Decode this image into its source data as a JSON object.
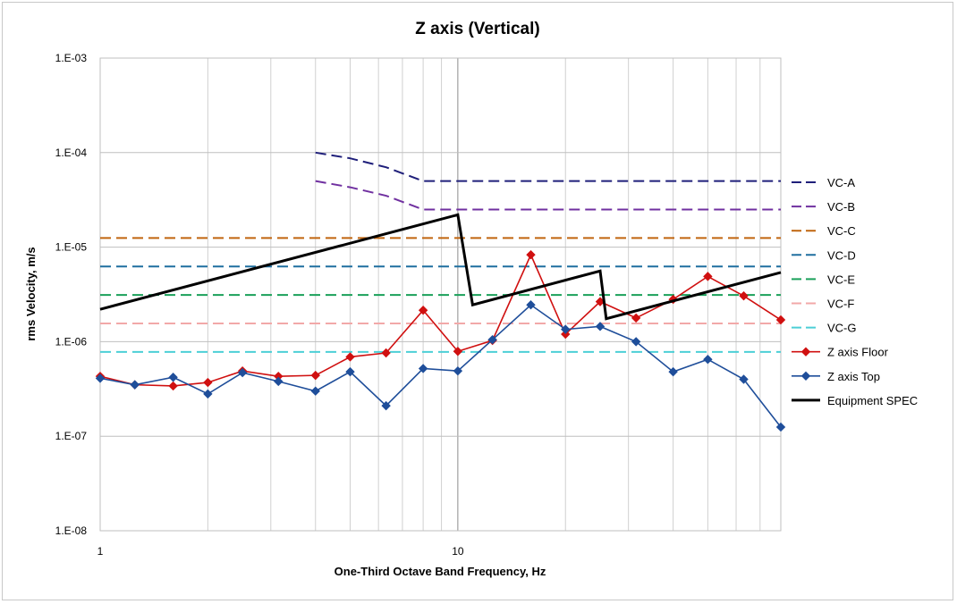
{
  "chart_data": {
    "type": "line",
    "title": "Z axis (Vertical)",
    "xlabel": "One-Third Octave Band Frequency, Hz",
    "ylabel": "rms Velocity, m/s",
    "x_scale": "log",
    "y_scale": "log",
    "xlim": [
      1,
      80
    ],
    "ylim": [
      1e-08,
      0.001
    ],
    "x_tick_labels": [
      {
        "value": 1,
        "label": "1"
      },
      {
        "value": 10,
        "label": "10"
      }
    ],
    "y_tick_labels": [
      {
        "value": 0.001,
        "label": "1.E-03"
      },
      {
        "value": 0.0001,
        "label": "1.E-04"
      },
      {
        "value": 1e-05,
        "label": "1.E-05"
      },
      {
        "value": 1e-06,
        "label": "1.E-06"
      },
      {
        "value": 1e-07,
        "label": "1.E-07"
      },
      {
        "value": 1e-08,
        "label": "1.E-08"
      }
    ],
    "grid": true,
    "legend_position": "right",
    "series": [
      {
        "name": "VC-A",
        "style": "dashed",
        "color": "#1f1f7a",
        "x": [
          4,
          5,
          6.3,
          8,
          10,
          80
        ],
        "values": [
          0.0001,
          8.7e-05,
          7e-05,
          5e-05,
          5e-05,
          5e-05
        ]
      },
      {
        "name": "VC-B",
        "style": "dashed",
        "color": "#7030a0",
        "x": [
          4,
          5,
          6.3,
          8,
          10,
          80
        ],
        "values": [
          5e-05,
          4.3e-05,
          3.5e-05,
          2.5e-05,
          2.5e-05,
          2.5e-05
        ]
      },
      {
        "name": "VC-C",
        "style": "dashed",
        "color": "#c0650f",
        "x": [
          1,
          80
        ],
        "values": [
          1.25e-05,
          1.25e-05
        ]
      },
      {
        "name": "VC-D",
        "style": "dashed",
        "color": "#1f6f9f",
        "x": [
          1,
          80
        ],
        "values": [
          6.25e-06,
          6.25e-06
        ]
      },
      {
        "name": "VC-E",
        "style": "dashed",
        "color": "#1aa05a",
        "x": [
          1,
          80
        ],
        "values": [
          3.12e-06,
          3.12e-06
        ]
      },
      {
        "name": "VC-F",
        "style": "dashed",
        "color": "#f2a8a8",
        "x": [
          1,
          80
        ],
        "values": [
          1.56e-06,
          1.56e-06
        ]
      },
      {
        "name": "VC-G",
        "style": "dashed",
        "color": "#4ccfd6",
        "x": [
          1,
          80
        ],
        "values": [
          7.8e-07,
          7.8e-07
        ]
      },
      {
        "name": "Z axis Floor",
        "style": "marker",
        "color": "#d01010",
        "x": [
          1,
          1.25,
          1.6,
          2,
          2.5,
          3.15,
          4,
          5,
          6.3,
          8,
          10,
          12.5,
          16,
          20,
          25,
          31.5,
          40,
          50,
          63,
          80
        ],
        "values": [
          4.3e-07,
          3.5e-07,
          3.4e-07,
          3.7e-07,
          4.9e-07,
          4.3e-07,
          4.4e-07,
          6.9e-07,
          7.6e-07,
          2.15e-06,
          7.9e-07,
          1.03e-06,
          8.3e-06,
          1.2e-06,
          2.65e-06,
          1.78e-06,
          2.8e-06,
          4.9e-06,
          3.05e-06,
          1.7e-06
        ]
      },
      {
        "name": "Z axis Top",
        "style": "marker",
        "color": "#1f4e9a",
        "x": [
          1,
          1.25,
          1.6,
          2,
          2.5,
          3.15,
          4,
          5,
          6.3,
          8,
          10,
          12.5,
          16,
          20,
          25,
          31.5,
          40,
          50,
          63,
          80
        ],
        "values": [
          4.1e-07,
          3.5e-07,
          4.2e-07,
          2.8e-07,
          4.7e-07,
          3.8e-07,
          3e-07,
          4.8e-07,
          2.1e-07,
          5.2e-07,
          4.9e-07,
          1.05e-06,
          2.45e-06,
          1.35e-06,
          1.45e-06,
          1e-06,
          4.8e-07,
          6.5e-07,
          4e-07,
          1.25e-07
        ]
      },
      {
        "name": "Equipment SPEC",
        "style": "solid",
        "color": "#000000",
        "x": [
          1,
          10,
          11,
          25,
          26,
          80
        ],
        "values": [
          2.2e-06,
          2.2e-05,
          2.45e-06,
          5.6e-06,
          1.75e-06,
          5.4e-06
        ]
      }
    ]
  }
}
